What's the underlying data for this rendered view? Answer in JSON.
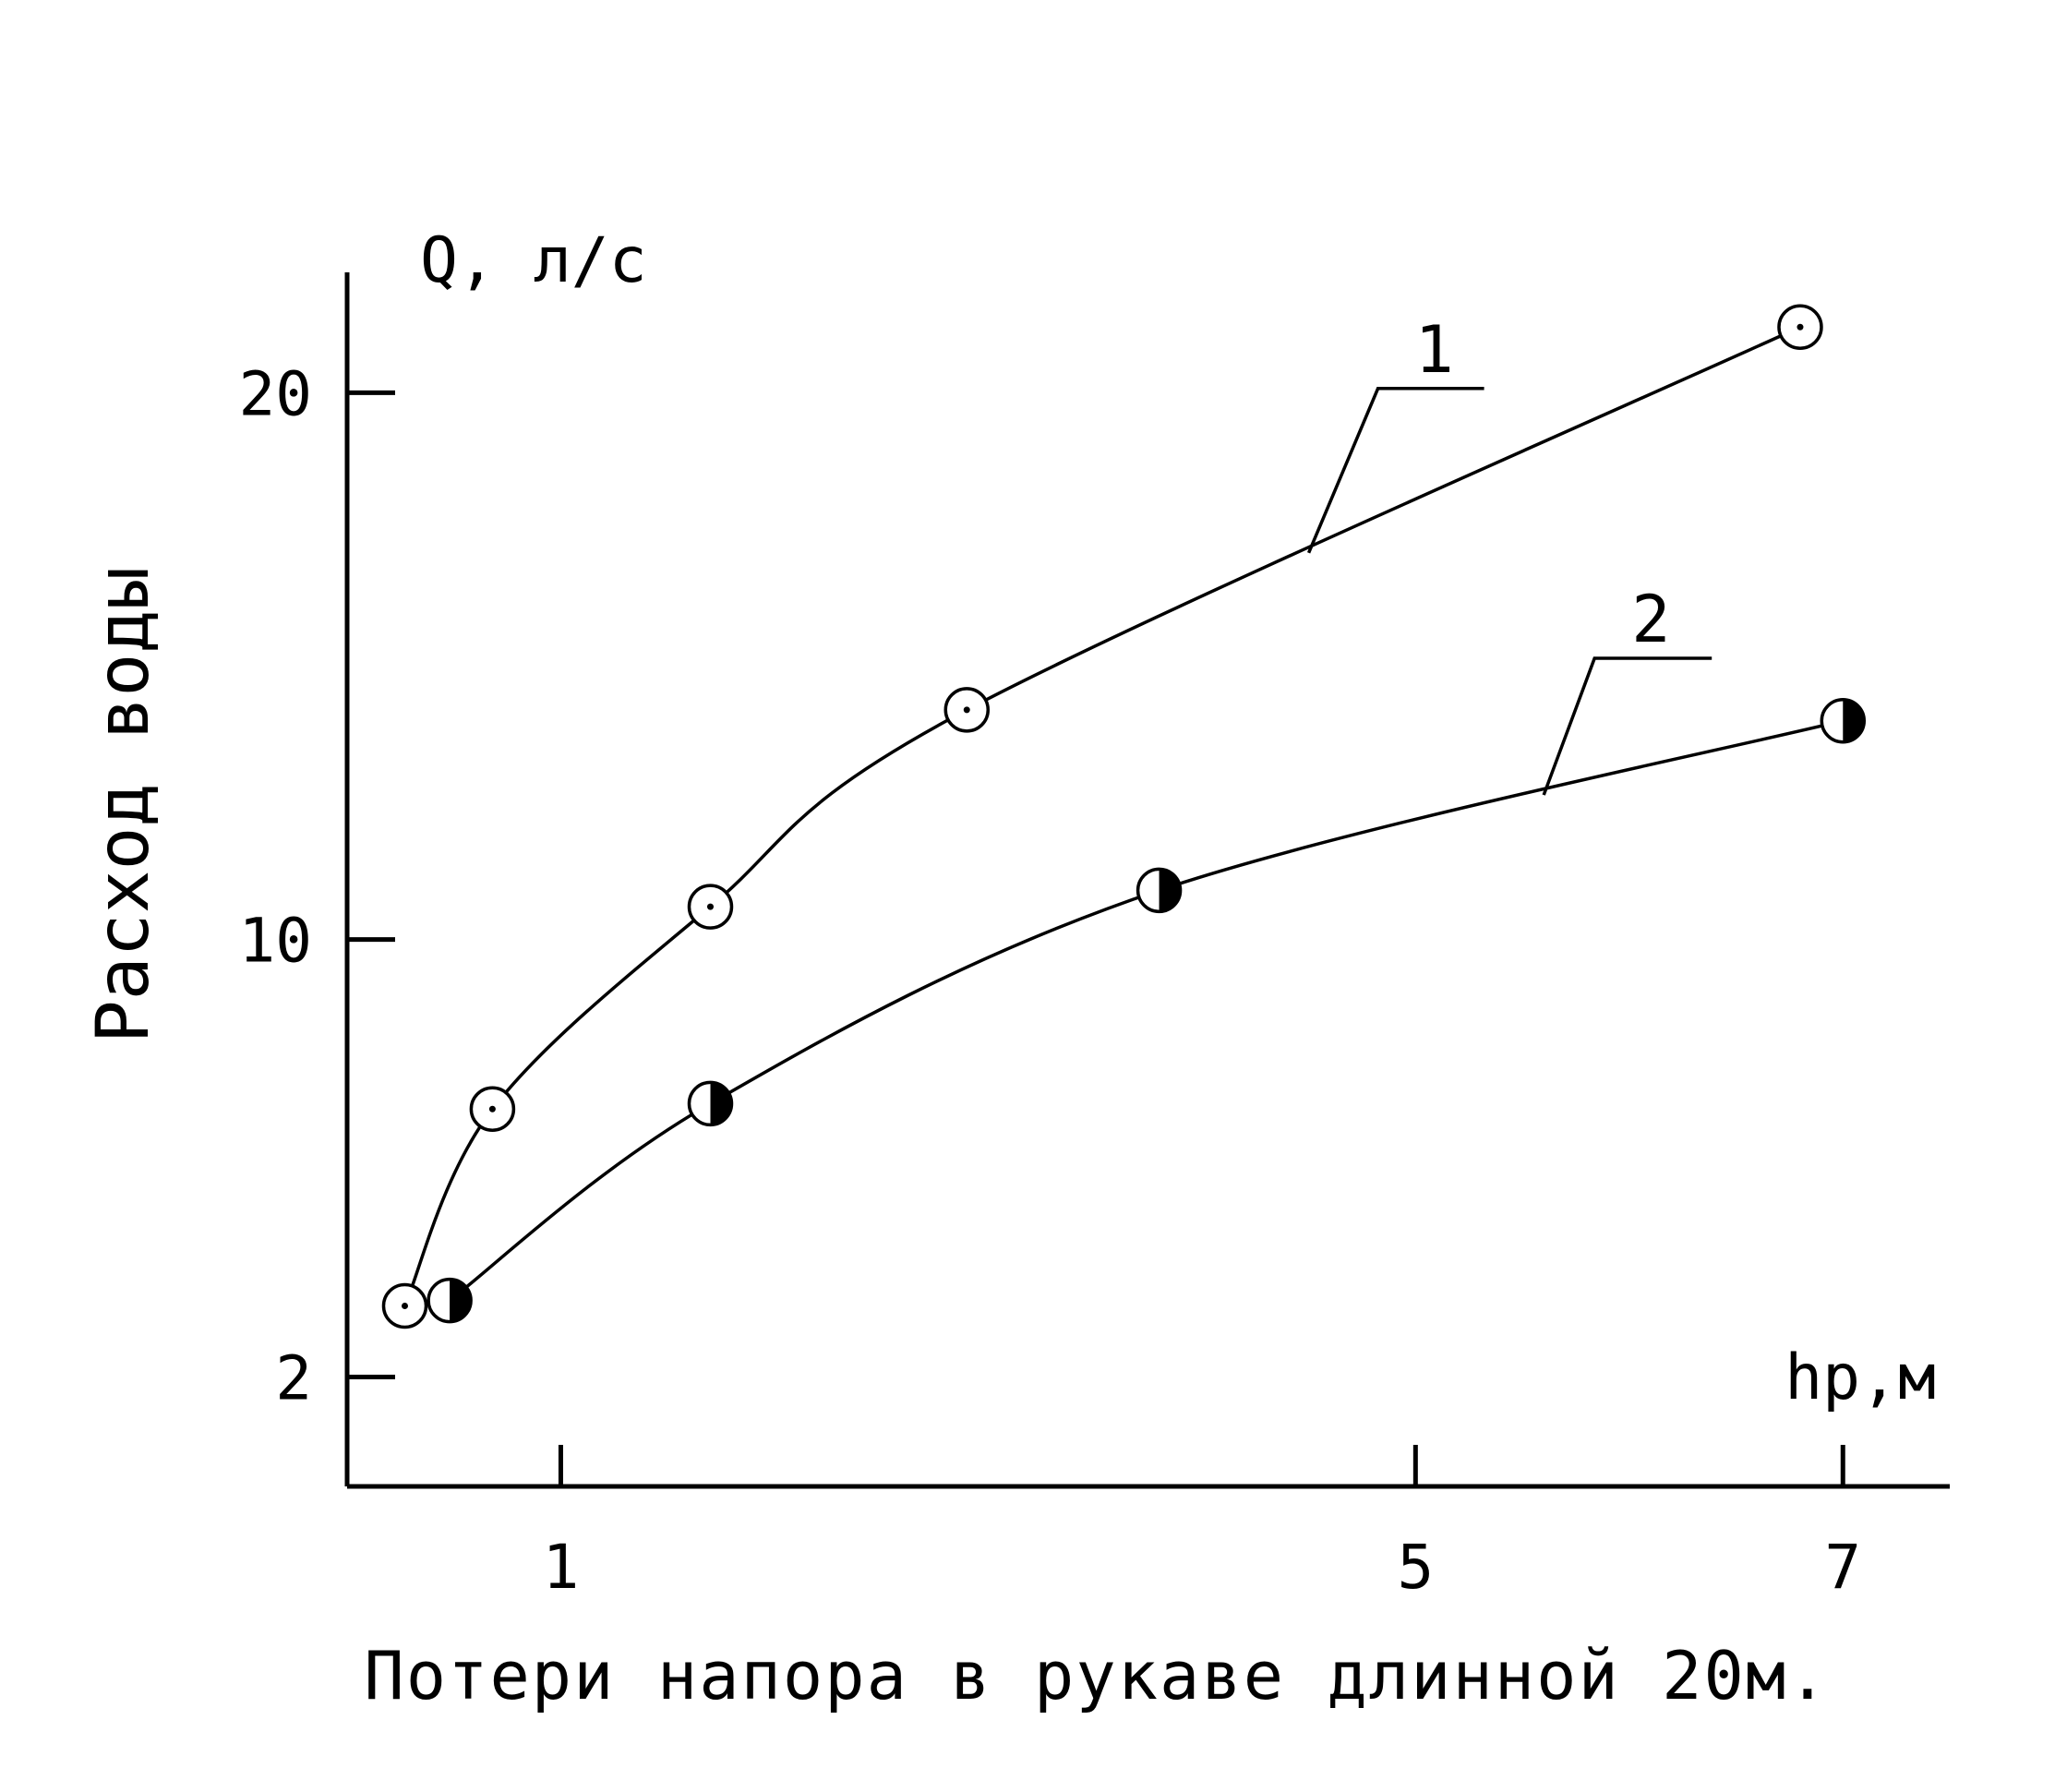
{
  "chart_data": {
    "type": "line",
    "xlabel": "Потери напора в рукаве длинной 20м.",
    "ylabel": "Расход воды",
    "x_unit_label": "hр,м",
    "y_unit_label": "Q, л/с",
    "xlim": [
      0,
      7.5
    ],
    "ylim": [
      0,
      22.2
    ],
    "x_ticks": [
      1,
      5,
      7
    ],
    "y_ticks": [
      2,
      10,
      20
    ],
    "grid": false,
    "series": [
      {
        "name": "1",
        "marker": "open-circle",
        "x": [
          0.27,
          0.68,
          1.7,
          2.9,
          6.8
        ],
        "y": [
          3.3,
          6.9,
          10.6,
          14.2,
          21.2
        ]
      },
      {
        "name": "2",
        "marker": "half-filled-circle",
        "x": [
          0.48,
          1.7,
          3.8,
          7.0
        ],
        "y": [
          3.4,
          7.0,
          10.9,
          14.0
        ]
      }
    ]
  }
}
